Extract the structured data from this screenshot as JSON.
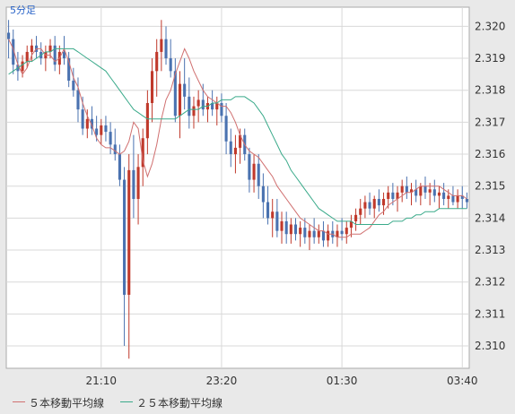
{
  "timeframe_label": "5分足",
  "colors": {
    "up_candle": "#c0392b",
    "down_candle": "#4a72b0",
    "ma5": "#d07070",
    "ma25": "#3aaa8a",
    "grid": "#d8d8d8",
    "plot_bg": "#ffffff"
  },
  "legend": [
    {
      "label": "５本移動平均線",
      "series": "ma5"
    },
    {
      "label": "２５本移動平均線",
      "series": "ma25"
    }
  ],
  "chart_data": {
    "type": "candlestick",
    "y_ticks": [
      "2.310",
      "2.311",
      "2.312",
      "2.313",
      "2.314",
      "2.315",
      "2.316",
      "2.317",
      "2.318",
      "2.319",
      "2.320"
    ],
    "ylim": [
      2.3093,
      2.3206
    ],
    "x_ticks": [
      {
        "label": "21:10",
        "index": 20
      },
      {
        "label": "23:20",
        "index": 46
      },
      {
        "label": "01:30",
        "index": 72
      },
      {
        "label": "03:40",
        "index": 98
      }
    ],
    "series": [
      {
        "name": "５本移動平均線",
        "key": "ma5",
        "values": [
          2.3196,
          2.3193,
          2.3188,
          2.3185,
          2.3187,
          2.3191,
          2.3193,
          2.3193,
          2.3191,
          2.3191,
          2.3189,
          2.319,
          2.3193,
          2.3189,
          2.3184,
          2.3181,
          2.3176,
          2.3172,
          2.3169,
          2.3165,
          2.3163,
          2.3162,
          2.3162,
          2.3161,
          2.316,
          2.3161,
          2.3164,
          2.317,
          2.3168,
          2.3158,
          2.3153,
          2.3157,
          2.3163,
          2.3171,
          2.3177,
          2.318,
          2.3185,
          2.3189,
          2.3193,
          2.319,
          2.3186,
          2.3183,
          2.318,
          2.3178,
          2.3177,
          2.3176,
          2.3175,
          2.3175,
          2.3173,
          2.317,
          2.3166,
          2.3163,
          2.3161,
          2.316,
          2.3159,
          2.3157,
          2.3155,
          2.3153,
          2.315,
          2.3148,
          2.3146,
          2.3144,
          2.3142,
          2.314,
          2.3139,
          2.3138,
          2.3137,
          2.3136,
          2.3136,
          2.3135,
          2.3135,
          2.3134,
          2.3134,
          2.3134,
          2.3135,
          2.3135,
          2.3135,
          2.3136,
          2.3137,
          2.3139,
          2.3141,
          2.3142,
          2.3144,
          2.3145,
          2.3146,
          2.3147,
          2.3148,
          2.3148,
          2.3149,
          2.315,
          2.315,
          2.315,
          2.315,
          2.315,
          2.3149,
          2.3148,
          2.3147,
          2.3147,
          2.3147,
          2.3146
        ]
      },
      {
        "name": "２５本移動平均線",
        "key": "ma25",
        "values": [
          2.3185,
          2.3186,
          2.3187,
          2.3188,
          2.3189,
          2.3189,
          2.319,
          2.3191,
          2.3192,
          2.3192,
          2.3193,
          2.3193,
          2.3193,
          2.3193,
          2.3193,
          2.3192,
          2.3191,
          2.319,
          2.3189,
          2.3188,
          2.3187,
          2.3186,
          2.3184,
          2.3182,
          2.318,
          2.3178,
          2.3176,
          2.3174,
          2.3173,
          2.3172,
          2.3171,
          2.3171,
          2.3171,
          2.3171,
          2.3171,
          2.3171,
          2.3171,
          2.3172,
          2.3173,
          2.3174,
          2.3174,
          2.3174,
          2.3175,
          2.3175,
          2.3176,
          2.3176,
          2.3177,
          2.3177,
          2.3177,
          2.3178,
          2.3178,
          2.3178,
          2.3177,
          2.3176,
          2.3174,
          2.3172,
          2.3169,
          2.3166,
          2.3163,
          2.316,
          2.3158,
          2.3155,
          2.3153,
          2.3151,
          2.3149,
          2.3147,
          2.3145,
          2.3143,
          2.3142,
          2.3141,
          2.314,
          2.3139,
          2.3139,
          2.3139,
          2.3139,
          2.3138,
          2.3138,
          2.3138,
          2.3138,
          2.3138,
          2.3138,
          2.3138,
          2.3138,
          2.3139,
          2.3139,
          2.3139,
          2.314,
          2.314,
          2.3141,
          2.3141,
          2.3142,
          2.3142,
          2.3142,
          2.3143,
          2.3143,
          2.3143,
          2.3143,
          2.3143,
          2.3143,
          2.3143
        ]
      }
    ],
    "candles": [
      [
        2.3198,
        2.3202,
        2.319,
        2.3196
      ],
      [
        2.3196,
        2.3199,
        2.3185,
        2.3188
      ],
      [
        2.3188,
        2.3192,
        2.3183,
        2.3186
      ],
      [
        2.3186,
        2.3191,
        2.3184,
        2.3189
      ],
      [
        2.3189,
        2.3194,
        2.3187,
        2.3192
      ],
      [
        2.3192,
        2.3196,
        2.3189,
        2.3194
      ],
      [
        2.3194,
        2.3197,
        2.319,
        2.3192
      ],
      [
        2.3192,
        2.3195,
        2.3188,
        2.319
      ],
      [
        2.319,
        2.3194,
        2.3186,
        2.3192
      ],
      [
        2.3192,
        2.3196,
        2.319,
        2.3194
      ],
      [
        2.3194,
        2.3197,
        2.3186,
        2.3188
      ],
      [
        2.3188,
        2.3194,
        2.3185,
        2.3192
      ],
      [
        2.3192,
        2.3197,
        2.3188,
        2.319
      ],
      [
        2.319,
        2.3192,
        2.3181,
        2.3183
      ],
      [
        2.3183,
        2.3187,
        2.3178,
        2.318
      ],
      [
        2.318,
        2.3184,
        2.317,
        2.3174
      ],
      [
        2.3174,
        2.3178,
        2.3166,
        2.3168
      ],
      [
        2.3168,
        2.3174,
        2.3165,
        2.3171
      ],
      [
        2.3171,
        2.3175,
        2.3166,
        2.3168
      ],
      [
        2.3168,
        2.3172,
        2.3164,
        2.3166
      ],
      [
        2.3166,
        2.3171,
        2.3163,
        2.3169
      ],
      [
        2.3169,
        2.3172,
        2.3164,
        2.3167
      ],
      [
        2.3167,
        2.317,
        2.316,
        2.3163
      ],
      [
        2.3163,
        2.3168,
        2.3158,
        2.316
      ],
      [
        2.316,
        2.3163,
        2.315,
        2.3152
      ],
      [
        2.3152,
        2.3156,
        2.31,
        2.3116
      ],
      [
        2.3116,
        2.316,
        2.3096,
        2.3155
      ],
      [
        2.3155,
        2.3166,
        2.314,
        2.3146
      ],
      [
        2.3146,
        2.316,
        2.3138,
        2.3156
      ],
      [
        2.3156,
        2.3168,
        2.315,
        2.3165
      ],
      [
        2.3165,
        2.318,
        2.316,
        2.3176
      ],
      [
        2.3176,
        2.319,
        2.317,
        2.3186
      ],
      [
        2.3186,
        2.3196,
        2.3178,
        2.3192
      ],
      [
        2.3192,
        2.3202,
        2.3186,
        2.3196
      ],
      [
        2.3196,
        2.32,
        2.3188,
        2.319
      ],
      [
        2.319,
        2.3196,
        2.3184,
        2.3186
      ],
      [
        2.3186,
        2.319,
        2.317,
        2.3172
      ],
      [
        2.3172,
        2.3186,
        2.3165,
        2.3182
      ],
      [
        2.3182,
        2.319,
        2.3174,
        2.3178
      ],
      [
        2.3178,
        2.3184,
        2.3168,
        2.3172
      ],
      [
        2.3172,
        2.3178,
        2.3168,
        2.3175
      ],
      [
        2.3175,
        2.318,
        2.317,
        2.3177
      ],
      [
        2.3177,
        2.3182,
        2.3172,
        2.3174
      ],
      [
        2.3174,
        2.3178,
        2.317,
        2.3176
      ],
      [
        2.3176,
        2.318,
        2.3172,
        2.3174
      ],
      [
        2.3174,
        2.3178,
        2.3169,
        2.3176
      ],
      [
        2.3176,
        2.3179,
        2.317,
        2.3172
      ],
      [
        2.3172,
        2.3176,
        2.316,
        2.3164
      ],
      [
        2.3164,
        2.3168,
        2.3156,
        2.316
      ],
      [
        2.316,
        2.3166,
        2.3154,
        2.3162
      ],
      [
        2.3162,
        2.3168,
        2.3157,
        2.3166
      ],
      [
        2.3166,
        2.3168,
        2.3158,
        2.316
      ],
      [
        2.316,
        2.3162,
        2.3148,
        2.3152
      ],
      [
        2.3152,
        2.316,
        2.3148,
        2.3157
      ],
      [
        2.3157,
        2.316,
        2.3146,
        2.315
      ],
      [
        2.315,
        2.3154,
        2.314,
        2.3145
      ],
      [
        2.3145,
        2.315,
        2.3138,
        2.314
      ],
      [
        2.314,
        2.3146,
        2.3134,
        2.3142
      ],
      [
        2.3142,
        2.3146,
        2.3134,
        2.3136
      ],
      [
        2.3136,
        2.3142,
        2.3132,
        2.3139
      ],
      [
        2.3139,
        2.3142,
        2.3132,
        2.3135
      ],
      [
        2.3135,
        2.314,
        2.3132,
        2.3138
      ],
      [
        2.3138,
        2.314,
        2.3133,
        2.3135
      ],
      [
        2.3135,
        2.3139,
        2.3131,
        2.3137
      ],
      [
        2.3137,
        2.314,
        2.3132,
        2.3134
      ],
      [
        2.3134,
        2.3138,
        2.313,
        2.3136
      ],
      [
        2.3136,
        2.314,
        2.3132,
        2.3134
      ],
      [
        2.3134,
        2.3138,
        2.3132,
        2.3136
      ],
      [
        2.3136,
        2.3139,
        2.3131,
        2.3133
      ],
      [
        2.3133,
        2.3138,
        2.3131,
        2.3136
      ],
      [
        2.3136,
        2.3139,
        2.3132,
        2.3134
      ],
      [
        2.3134,
        2.3138,
        2.3131,
        2.3136
      ],
      [
        2.3136,
        2.314,
        2.3133,
        2.3135
      ],
      [
        2.3135,
        2.3139,
        2.3132,
        2.3137
      ],
      [
        2.3137,
        2.3141,
        2.3134,
        2.3139
      ],
      [
        2.3139,
        2.3143,
        2.3136,
        2.3141
      ],
      [
        2.3141,
        2.3146,
        2.3138,
        2.3143
      ],
      [
        2.3143,
        2.3147,
        2.314,
        2.3145
      ],
      [
        2.3145,
        2.3148,
        2.3141,
        2.3143
      ],
      [
        2.3143,
        2.3147,
        2.314,
        2.3146
      ],
      [
        2.3146,
        2.3149,
        2.3142,
        2.3144
      ],
      [
        2.3144,
        2.3148,
        2.3141,
        2.3146
      ],
      [
        2.3146,
        2.315,
        2.3143,
        2.3148
      ],
      [
        2.3148,
        2.3151,
        2.3144,
        2.3146
      ],
      [
        2.3146,
        2.315,
        2.3142,
        2.3148
      ],
      [
        2.3148,
        2.3152,
        2.3145,
        2.315
      ],
      [
        2.315,
        2.3153,
        2.3146,
        2.3148
      ],
      [
        2.3148,
        2.3151,
        2.3144,
        2.3149
      ],
      [
        2.3149,
        2.3152,
        2.3145,
        2.3147
      ],
      [
        2.3147,
        2.3151,
        2.3144,
        2.315
      ],
      [
        2.315,
        2.3153,
        2.3146,
        2.3148
      ],
      [
        2.3148,
        2.3151,
        2.3144,
        2.3149
      ],
      [
        2.3149,
        2.3152,
        2.3145,
        2.3147
      ],
      [
        2.3147,
        2.315,
        2.3143,
        2.3148
      ],
      [
        2.3148,
        2.3151,
        2.3144,
        2.3146
      ],
      [
        2.3146,
        2.3149,
        2.3143,
        2.3147
      ],
      [
        2.3147,
        2.315,
        2.3144,
        2.3145
      ],
      [
        2.3145,
        2.3149,
        2.3143,
        2.3147
      ],
      [
        2.3147,
        2.315,
        2.3143,
        2.3146
      ],
      [
        2.3146,
        2.3148,
        2.3143,
        2.3145
      ]
    ]
  }
}
